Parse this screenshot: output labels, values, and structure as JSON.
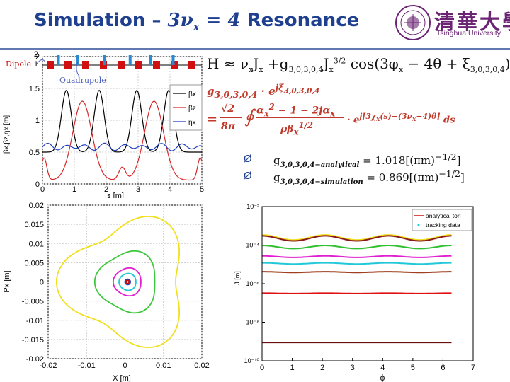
{
  "slide": {
    "title_prefix": "Simulation – ",
    "title_math": "3ν",
    "title_math_sub": "x",
    "title_math_suffix": " = 4",
    "title_suffix": " Resonance"
  },
  "logo": {
    "chinese": "清華大學",
    "english": "Tsinghua University",
    "color": "#6b2474"
  },
  "equations": {
    "hamiltonian": "H ≈ ν<sub>x</sub>J<sub>x</sub> +g<sub>3,0,3,0,4</sub>J<sub>x</sub><sup>3/2</sup> cos(3φ<sub>x</sub> − 4θ + ξ<sub>3,0,3,0,4</sub>)",
    "g_lhs": "g<sub>3,0,3,0,4</sub> · e<sup>jξ<sub>3,0,3,0,4</sub></sup>",
    "g_rhs_prefix": "=",
    "g_rhs_frac_num": "√2",
    "g_rhs_frac_den": "8π",
    "g_rhs_integral": "∮",
    "g_rhs_inner_num": "α<sub>x</sub><sup>2</sup> − 1 − 2jα<sub>x</sub>",
    "g_rhs_inner_den": "ρβ<sub>x</sub><sup>1/2</sup>",
    "g_rhs_exp": "· e<sup>j[3χ<sub>x</sub>(s)−(3ν<sub>x</sub>−4)θ]</sup> ds"
  },
  "bullets": [
    {
      "symbol": "Ø",
      "label": "g<sub>3,0,3,0,4−analytical</sub> = 1.018[(πm)<sup>−1/2</sup>]"
    },
    {
      "symbol": "Ø",
      "label": "g<sub>3,0,3,0,4−simulation</sub> = 0.869[(πm)<sup>−1/2</sup>]"
    }
  ],
  "lattice_annotations": {
    "dipole": "Dipole",
    "quadrupole": "Quadrupole"
  },
  "chart_data": [
    {
      "type": "line",
      "title": "",
      "xlabel": "s [m]",
      "ylabel": "βx,βz,ηx [m]",
      "xlim": [
        0,
        5
      ],
      "ylim": [
        0,
        2
      ],
      "x_ticks": [
        0,
        1,
        2,
        3,
        4,
        5
      ],
      "y_ticks": [
        0,
        0.5,
        1,
        1.5,
        2
      ],
      "legend": [
        "βx",
        "βz",
        "ηx"
      ],
      "legend_position": "top-right",
      "series": [
        {
          "name": "βx",
          "color": "#000000",
          "description": "peaks ≈1.47 at s≈0.75,1.78,2.96,3.96; minima ≈0.5"
        },
        {
          "name": "βz",
          "color": "#d62728",
          "description": "peaks ≈1.3 at s≈1.25,3.5; minima ≈0.06 at s≈0.3,2.2,2.8,4.7"
        },
        {
          "name": "ηx",
          "color": "#1f3fbf",
          "description": "≈0.55–0.62 varying"
        }
      ]
    },
    {
      "type": "scatter",
      "title": "",
      "xlabel": "X [m]",
      "ylabel": "Px [m]",
      "xlim": [
        -0.02,
        0.02
      ],
      "ylim": [
        -0.02,
        0.02
      ],
      "x_ticks": [
        -0.02,
        -0.01,
        0,
        0.01,
        0.02
      ],
      "y_ticks": [
        -0.02,
        -0.015,
        -0.01,
        -0.005,
        0,
        0.005,
        0.01,
        0.015,
        0.02
      ],
      "series": [
        {
          "name": "orbit-yellow",
          "color": "#f0e020",
          "amplitude": 0.0155
        },
        {
          "name": "orbit-green",
          "color": "#3cc83c",
          "amplitude": 0.0078
        },
        {
          "name": "orbit-magenta",
          "color": "#e020d0",
          "amplitude": 0.0036
        },
        {
          "name": "orbit-cyan",
          "color": "#20c8d8",
          "amplitude": 0.0022
        },
        {
          "name": "orbit-blue",
          "color": "#2040c0",
          "amplitude": 0.0007
        },
        {
          "name": "orbit-red",
          "color": "#c01010",
          "amplitude": 0.0004
        }
      ]
    },
    {
      "type": "line",
      "title": "",
      "xlabel": "ϕ",
      "ylabel": "J [m]",
      "xlim": [
        0,
        7
      ],
      "ylim_log10": [
        -10,
        -2
      ],
      "x_ticks": [
        0,
        1,
        2,
        3,
        4,
        5,
        6,
        7
      ],
      "y_tick_labels": [
        "10⁻²",
        "10⁻⁴",
        "10⁻⁶",
        "10⁻⁸",
        "10⁻¹⁰"
      ],
      "y_tick_exponents": [
        -2,
        -4,
        -6,
        -8,
        -10
      ],
      "legend": [
        "analytical tori",
        "tracking data"
      ],
      "legend_position": "top-right",
      "series": [
        {
          "name": "yellow",
          "color": "#f0e020",
          "log10J": -3.6,
          "ripple": 0.13
        },
        {
          "name": "darkred",
          "color": "#8b1a1a",
          "log10J": -3.65,
          "ripple": 0.13
        },
        {
          "name": "green",
          "color": "#30c030",
          "log10J": -4.1,
          "ripple": 0.08
        },
        {
          "name": "magenta",
          "color": "#e020d0",
          "log10J": -4.6,
          "ripple": 0.04
        },
        {
          "name": "cyan",
          "color": "#20c8d8",
          "log10J": -4.95,
          "ripple": 0.03
        },
        {
          "name": "brown",
          "color": "#a04020",
          "log10J": -5.4,
          "ripple": 0.02
        },
        {
          "name": "red",
          "color": "#e01010",
          "log10J": -6.5,
          "ripple": 0.01
        },
        {
          "name": "darkred2",
          "color": "#6a0d0d",
          "log10J": -9.05,
          "ripple": 0.0
        }
      ]
    }
  ]
}
